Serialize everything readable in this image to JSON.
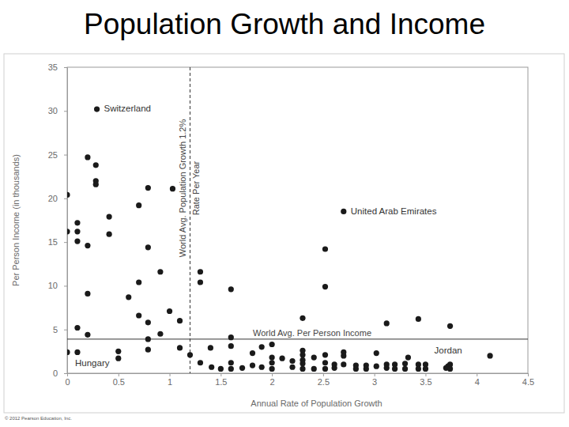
{
  "chart_data": {
    "type": "scatter",
    "title": "Population Growth and Income",
    "x_label": "Annual Rate of Population Growth",
    "y_label": "Per Person Income (in thousands)",
    "footer": "© 2012 Pearson Education, Inc.",
    "color": "#1a1a1a",
    "marker": "circle",
    "xlim": [
      0,
      4.5
    ],
    "ylim": [
      0,
      35
    ],
    "xticks": [
      0,
      0.5,
      1,
      1.5,
      2,
      2.5,
      3,
      3.5,
      4,
      4.5
    ],
    "yticks": [
      0,
      5,
      10,
      15,
      20,
      25,
      30,
      35
    ],
    "grid": false,
    "x": [
      0,
      0,
      0,
      0.1,
      0.1,
      0.1,
      0.1,
      0.1,
      0.2,
      0.2,
      0.2,
      0.2,
      0.29,
      0.28,
      0.28,
      0.28,
      0.41,
      0.41,
      0.5,
      0.5,
      0.6,
      0.7,
      0.7,
      0.7,
      0.79,
      0.79,
      0.79,
      0.79,
      0.79,
      0.91,
      0.91,
      1.0,
      1.03,
      1.1,
      1.1,
      1.2,
      1.3,
      1.3,
      1.3,
      1.4,
      1.41,
      1.5,
      1.6,
      1.6,
      1.6,
      1.6,
      1.6,
      1.71,
      1.81,
      1.81,
      1.9,
      1.9,
      2.0,
      2.0,
      2.0,
      2.0,
      2.1,
      2.2,
      2.2,
      2.3,
      2.3,
      2.3,
      2.3,
      2.3,
      2.3,
      2.41,
      2.41,
      2.52,
      2.52,
      2.52,
      2.52,
      2.52,
      2.61,
      2.61,
      2.7,
      2.7,
      2.7,
      2.7,
      2.82,
      2.82,
      2.92,
      2.92,
      3.02,
      3.02,
      3.12,
      3.12,
      3.12,
      3.2,
      3.2,
      3.3,
      3.3,
      3.33,
      3.43,
      3.43,
      3.43,
      3.5,
      3.5,
      3.7,
      3.72,
      3.74,
      3.74,
      3.74,
      4.13
    ],
    "values": [
      20.4,
      16.2,
      2.4,
      17.2,
      16.2,
      15.1,
      5.2,
      2.4,
      24.7,
      14.6,
      9.1,
      4.4,
      30.2,
      23.8,
      22.0,
      21.6,
      17.9,
      15.9,
      2.5,
      1.7,
      8.7,
      19.2,
      10.4,
      6.6,
      21.2,
      14.4,
      5.8,
      3.9,
      2.7,
      11.6,
      4.5,
      7.1,
      21.1,
      6.0,
      2.9,
      2.1,
      11.6,
      10.4,
      1.2,
      2.9,
      0.7,
      0.5,
      9.6,
      4.1,
      3.1,
      1.2,
      0.5,
      0.6,
      0.9,
      2.3,
      3.0,
      0.7,
      3.3,
      1.8,
      1.2,
      0.5,
      1.7,
      1.4,
      0.7,
      6.3,
      2.6,
      2.1,
      1.5,
      1.1,
      0.5,
      1.8,
      0.5,
      14.2,
      9.9,
      2.1,
      1.2,
      0.5,
      1.0,
      0.6,
      18.5,
      2.4,
      2.0,
      1.0,
      0.9,
      0.5,
      0.9,
      0.5,
      2.3,
      0.8,
      1.0,
      0.6,
      5.7,
      1.0,
      0.5,
      1.1,
      0.5,
      1.8,
      1.0,
      0.5,
      6.2,
      1.0,
      0.5,
      0.6,
      0.8,
      5.4,
      1.0,
      0.5,
      2.0
    ],
    "annotations": [
      {
        "text": "Switzerland",
        "x": 0.29,
        "y": 30.2
      },
      {
        "text": "United Arab Emirates",
        "x": 2.7,
        "y": 18.5
      },
      {
        "text": "Jordan",
        "x": 3.74,
        "y": 1.0
      },
      {
        "text": "Hungary",
        "x": 0,
        "y": 2.4
      }
    ],
    "reference_lines": [
      {
        "axis": "x",
        "value": 1.2,
        "line_style": "dashed",
        "label": [
          "World Avg. Population Growth 1.2%",
          "Rate Per Year"
        ]
      },
      {
        "axis": "y",
        "value": 3.9,
        "line_style": "solid",
        "label": [
          "World Avg. Per Person Income"
        ]
      }
    ]
  }
}
